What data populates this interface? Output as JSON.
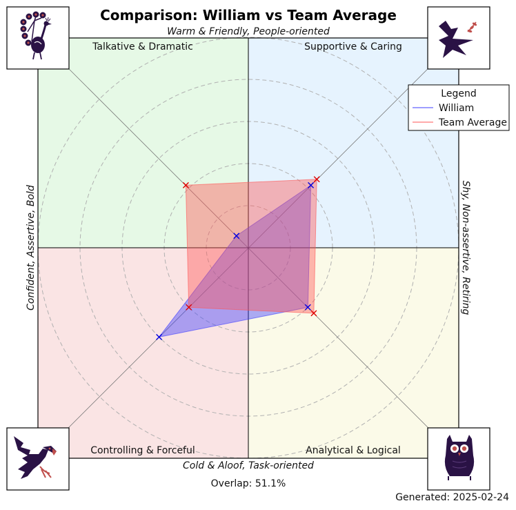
{
  "chart_data": {
    "type": "radar",
    "title": "Comparison: William vs Team Average",
    "axes": {
      "top": "Warm & Friendly, People-oriented",
      "bottom": "Cold & Aloof, Task-oriented",
      "left": "Confident, Assertive, Bold",
      "right": "Shy, Non-assertive, Retiring"
    },
    "quadrants": {
      "top_left": "Talkative & Dramatic",
      "top_right": "Supportive & Caring",
      "bottom_left": "Controlling & Forceful",
      "bottom_right": "Analytical & Logical"
    },
    "quadrant_colors": {
      "top_left": "#e6f9e6",
      "top_right": "#e6f3fe",
      "bottom_left": "#fae4e4",
      "bottom_right": "#fbfae8"
    },
    "directions": [
      "top-right",
      "bottom-right",
      "bottom-left",
      "top-left"
    ],
    "rmax": 5,
    "rings": [
      1,
      2,
      3,
      4,
      5
    ],
    "series": [
      {
        "name": "William",
        "color": "#3b3bff",
        "values": [
          2.1,
          2.0,
          3.0,
          0.4
        ]
      },
      {
        "name": "Team Average",
        "color": "#ff5555",
        "values": [
          2.3,
          2.2,
          2.0,
          2.1
        ]
      }
    ],
    "legend": {
      "title": "Legend",
      "placement": "upper-right"
    },
    "grid": true
  },
  "icons": {
    "top_left": "peacock-icon",
    "top_right": "dove-icon",
    "bottom_left": "eagle-icon",
    "bottom_right": "owl-icon"
  },
  "footer": {
    "overlap": "Overlap: 51.1%",
    "generated": "Generated: 2025-02-24"
  }
}
